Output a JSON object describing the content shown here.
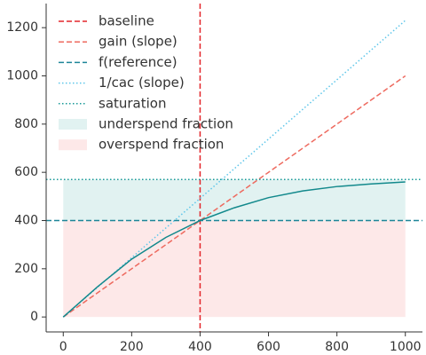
{
  "chart_data": {
    "type": "line",
    "xlim": [
      -50,
      1050
    ],
    "ylim": [
      -62,
      1300
    ],
    "xticks": [
      0,
      200,
      400,
      600,
      800,
      1000
    ],
    "yticks": [
      0,
      200,
      400,
      600,
      800,
      1000,
      1200
    ],
    "curve": {
      "color": "#12898c",
      "x": [
        0,
        100,
        200,
        300,
        400,
        500,
        600,
        700,
        800,
        900,
        1000
      ],
      "values": [
        0,
        125,
        240,
        330,
        400,
        453,
        495,
        523,
        541,
        552,
        560
      ]
    },
    "series": [
      {
        "name": "baseline",
        "kind": "vline",
        "color": "#e3262a",
        "dash": "dashed",
        "x_value": 400
      },
      {
        "name": "gain (slope)",
        "kind": "line",
        "color": "#ee6a5f",
        "dash": "dashed",
        "x": [
          0,
          1000
        ],
        "values": [
          0,
          1000
        ]
      },
      {
        "name": "f(reference)",
        "kind": "hline",
        "color": "#1d8598",
        "dash": "dashed",
        "y_value": 400
      },
      {
        "name": "1/cac (slope)",
        "kind": "line",
        "color": "#5ec6ea",
        "dash": "dotted",
        "x": [
          0,
          1000
        ],
        "values": [
          0,
          1230
        ]
      },
      {
        "name": "saturation",
        "kind": "hline",
        "color": "#1a9a98",
        "dash": "dotted",
        "y_value": 570
      },
      {
        "name": "underspend fraction",
        "kind": "fill",
        "color": "#e1f2f1",
        "x": [
          0,
          1000
        ],
        "lower": 400,
        "upper": 570
      },
      {
        "name": "overspend fraction",
        "kind": "fill",
        "color": "#fde8e8",
        "x": [
          0,
          1000
        ],
        "lower": 0,
        "upper": 400
      }
    ]
  }
}
